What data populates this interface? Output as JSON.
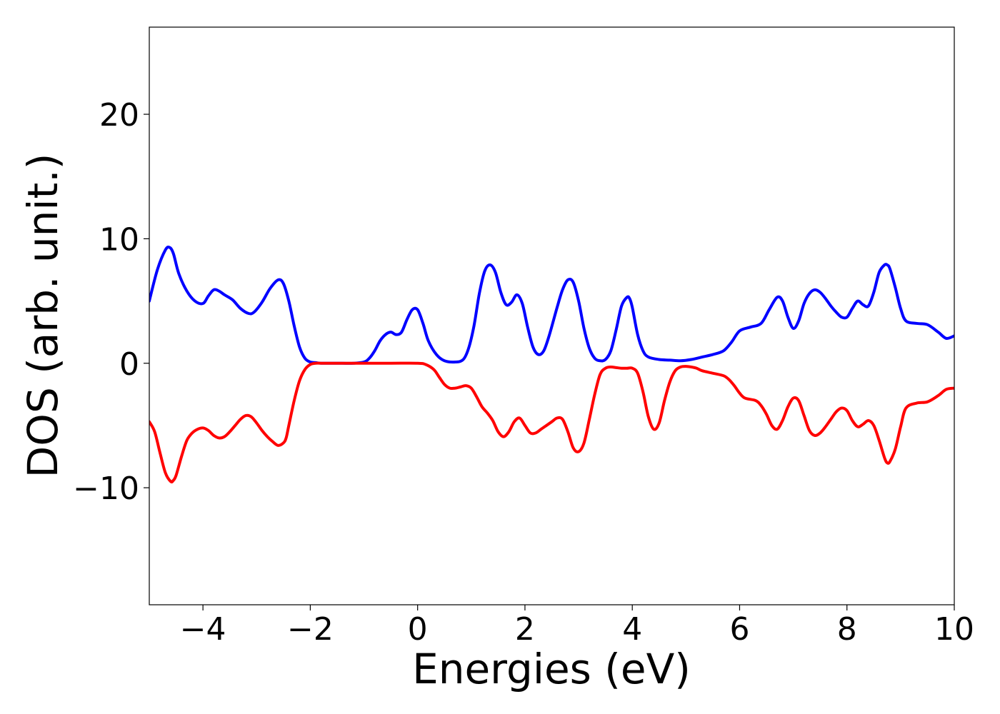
{
  "chart_data": {
    "type": "line",
    "title": "",
    "xlabel": "Energies (eV)",
    "ylabel": "DOS (arb. unit.)",
    "xlim": [
      -5,
      10
    ],
    "ylim": [
      -19.4,
      27
    ],
    "xticks": [
      -4,
      -2,
      0,
      2,
      4,
      6,
      8,
      10
    ],
    "xtick_labels": [
      "−4",
      "−2",
      "0",
      "2",
      "4",
      "6",
      "8",
      "10"
    ],
    "yticks": [
      -10,
      0,
      10,
      20
    ],
    "ytick_labels": [
      "−10",
      "0",
      "10",
      "20"
    ],
    "grid": false,
    "legend": "none",
    "series": [
      {
        "color": "#0000ff",
        "x": [
          -5.0,
          -4.85,
          -4.7,
          -4.62,
          -4.55,
          -4.45,
          -4.3,
          -4.15,
          -4.0,
          -3.9,
          -3.8,
          -3.7,
          -3.6,
          -3.45,
          -3.3,
          -3.15,
          -3.05,
          -2.9,
          -2.75,
          -2.6,
          -2.5,
          -2.4,
          -2.3,
          -2.2,
          -2.1,
          -2.0,
          -1.9,
          -1.8,
          -1.6,
          -1.4,
          -1.2,
          -1.0,
          -0.9,
          -0.8,
          -0.7,
          -0.6,
          -0.5,
          -0.4,
          -0.3,
          -0.2,
          -0.1,
          0.0,
          0.1,
          0.2,
          0.35,
          0.5,
          0.7,
          0.85,
          0.95,
          1.05,
          1.15,
          1.25,
          1.35,
          1.45,
          1.55,
          1.65,
          1.75,
          1.85,
          1.95,
          2.05,
          2.15,
          2.25,
          2.35,
          2.45,
          2.6,
          2.7,
          2.8,
          2.9,
          3.0,
          3.1,
          3.2,
          3.3,
          3.4,
          3.5,
          3.6,
          3.7,
          3.8,
          3.9,
          3.95,
          4.0,
          4.1,
          4.2,
          4.3,
          4.5,
          4.7,
          4.9,
          5.1,
          5.3,
          5.5,
          5.7,
          5.85,
          6.0,
          6.2,
          6.4,
          6.55,
          6.7,
          6.8,
          6.9,
          7.0,
          7.1,
          7.2,
          7.3,
          7.4,
          7.5,
          7.6,
          7.7,
          7.8,
          7.9,
          8.0,
          8.1,
          8.2,
          8.3,
          8.4,
          8.5,
          8.6,
          8.7,
          8.75,
          8.8,
          8.9,
          9.0,
          9.1,
          9.3,
          9.5,
          9.7,
          9.85,
          10.0
        ],
        "y": [
          5.0,
          7.5,
          9.1,
          9.3,
          8.8,
          7.2,
          5.8,
          5.0,
          4.8,
          5.4,
          5.9,
          5.8,
          5.5,
          5.1,
          4.4,
          4.0,
          4.1,
          4.9,
          6.0,
          6.7,
          6.4,
          5.0,
          3.0,
          1.3,
          0.4,
          0.1,
          0.05,
          0.0,
          0.0,
          0.0,
          0.0,
          0.1,
          0.4,
          1.0,
          1.8,
          2.3,
          2.5,
          2.3,
          2.5,
          3.5,
          4.3,
          4.3,
          3.2,
          1.8,
          0.7,
          0.2,
          0.1,
          0.3,
          1.2,
          3.0,
          5.6,
          7.4,
          7.9,
          7.3,
          5.7,
          4.7,
          4.9,
          5.5,
          4.8,
          2.9,
          1.3,
          0.7,
          1.0,
          2.2,
          4.5,
          5.9,
          6.7,
          6.5,
          5.0,
          2.8,
          1.2,
          0.4,
          0.2,
          0.3,
          1.0,
          2.7,
          4.6,
          5.3,
          5.2,
          4.5,
          2.3,
          1.0,
          0.5,
          0.3,
          0.25,
          0.2,
          0.3,
          0.5,
          0.7,
          1.0,
          1.7,
          2.6,
          2.9,
          3.2,
          4.3,
          5.3,
          5.0,
          3.7,
          2.8,
          3.4,
          4.8,
          5.6,
          5.9,
          5.7,
          5.2,
          4.6,
          4.1,
          3.7,
          3.7,
          4.4,
          5.0,
          4.7,
          4.6,
          5.7,
          7.3,
          7.9,
          7.9,
          7.6,
          6.1,
          4.4,
          3.4,
          3.2,
          3.1,
          2.5,
          2.0,
          2.2
        ]
      },
      {
        "color": "#ff0000",
        "x": [
          -5.0,
          -4.9,
          -4.8,
          -4.7,
          -4.6,
          -4.55,
          -4.5,
          -4.4,
          -4.3,
          -4.2,
          -4.1,
          -4.0,
          -3.9,
          -3.8,
          -3.7,
          -3.6,
          -3.5,
          -3.4,
          -3.3,
          -3.2,
          -3.1,
          -3.0,
          -2.9,
          -2.8,
          -2.7,
          -2.6,
          -2.5,
          -2.45,
          -2.4,
          -2.3,
          -2.2,
          -2.1,
          -2.0,
          -1.9,
          -1.8,
          -1.6,
          -1.4,
          -1.2,
          -1.0,
          -0.5,
          0.0,
          0.15,
          0.3,
          0.4,
          0.5,
          0.6,
          0.7,
          0.8,
          0.9,
          1.0,
          1.1,
          1.2,
          1.3,
          1.4,
          1.5,
          1.6,
          1.7,
          1.8,
          1.9,
          2.0,
          2.1,
          2.2,
          2.3,
          2.4,
          2.5,
          2.6,
          2.7,
          2.8,
          2.9,
          3.0,
          3.1,
          3.2,
          3.3,
          3.4,
          3.5,
          3.6,
          3.7,
          3.8,
          3.9,
          4.0,
          4.1,
          4.2,
          4.3,
          4.4,
          4.5,
          4.6,
          4.7,
          4.8,
          4.9,
          5.0,
          5.1,
          5.2,
          5.3,
          5.5,
          5.7,
          5.8,
          5.9,
          6.0,
          6.1,
          6.3,
          6.4,
          6.5,
          6.6,
          6.7,
          6.8,
          6.9,
          7.0,
          7.1,
          7.2,
          7.3,
          7.4,
          7.5,
          7.6,
          7.7,
          7.8,
          7.9,
          8.0,
          8.1,
          8.2,
          8.3,
          8.4,
          8.5,
          8.6,
          8.7,
          8.75,
          8.8,
          8.9,
          9.0,
          9.1,
          9.3,
          9.5,
          9.7,
          9.85,
          10.0
        ],
        "y": [
          -4.7,
          -5.5,
          -7.2,
          -8.8,
          -9.5,
          -9.4,
          -9.0,
          -7.5,
          -6.2,
          -5.6,
          -5.3,
          -5.2,
          -5.4,
          -5.8,
          -6.0,
          -5.9,
          -5.5,
          -5.0,
          -4.5,
          -4.2,
          -4.3,
          -4.8,
          -5.4,
          -5.9,
          -6.3,
          -6.6,
          -6.4,
          -6.0,
          -5.0,
          -3.0,
          -1.4,
          -0.5,
          -0.1,
          0.0,
          0.0,
          0.0,
          0.0,
          0.0,
          0.0,
          0.0,
          0.0,
          -0.1,
          -0.5,
          -1.1,
          -1.7,
          -2.0,
          -2.0,
          -1.9,
          -1.8,
          -2.0,
          -2.7,
          -3.5,
          -4.0,
          -4.6,
          -5.5,
          -5.9,
          -5.5,
          -4.7,
          -4.4,
          -5.0,
          -5.6,
          -5.6,
          -5.3,
          -5.0,
          -4.7,
          -4.4,
          -4.5,
          -5.5,
          -6.8,
          -7.1,
          -6.4,
          -4.5,
          -2.5,
          -0.9,
          -0.4,
          -0.3,
          -0.35,
          -0.4,
          -0.4,
          -0.4,
          -0.8,
          -2.3,
          -4.3,
          -5.3,
          -4.8,
          -3.0,
          -1.5,
          -0.6,
          -0.3,
          -0.25,
          -0.3,
          -0.4,
          -0.6,
          -0.8,
          -1.0,
          -1.3,
          -1.8,
          -2.4,
          -2.8,
          -3.0,
          -3.4,
          -4.1,
          -5.0,
          -5.3,
          -4.6,
          -3.5,
          -2.8,
          -3.0,
          -4.2,
          -5.4,
          -5.8,
          -5.6,
          -5.1,
          -4.5,
          -3.9,
          -3.6,
          -3.8,
          -4.6,
          -5.1,
          -4.9,
          -4.6,
          -5.0,
          -6.2,
          -7.6,
          -8.0,
          -7.9,
          -6.9,
          -5.1,
          -3.6,
          -3.2,
          -3.1,
          -2.6,
          -2.1,
          -2.0
        ]
      }
    ]
  }
}
